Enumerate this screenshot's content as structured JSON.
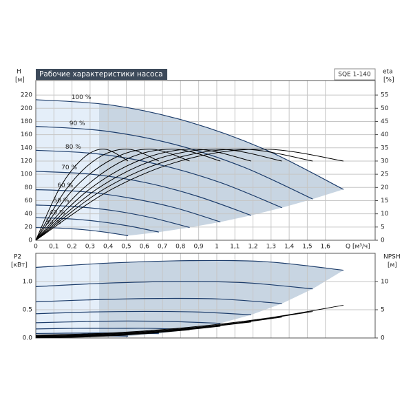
{
  "chart_data": [
    {
      "type": "pump-head",
      "title": "Рабочие характеристики насоса",
      "model": "SQE 1-140",
      "y_label": "H",
      "y_unit": "[м]",
      "y2_label": "eta",
      "y2_unit": "[%]",
      "x_label": "Q [м³/ч]",
      "xlim": [
        0,
        1.875
      ],
      "xticks": [
        0,
        {
          "value": 0.1,
          "label": "0,1"
        },
        {
          "value": 0.2,
          "label": "0,2"
        },
        {
          "value": 0.3,
          "label": "0,3"
        },
        {
          "value": 0.4,
          "label": "0,4"
        },
        {
          "value": 0.5,
          "label": "0,5"
        },
        {
          "value": 0.6,
          "label": "0,6"
        },
        {
          "value": 0.7,
          "label": "0,7"
        },
        {
          "value": 0.8,
          "label": "0,8"
        },
        {
          "value": 0.9,
          "label": "0,9"
        },
        1,
        {
          "value": 1.1,
          "label": "1,1"
        },
        {
          "value": 1.2,
          "label": "1,2"
        },
        {
          "value": 1.3,
          "label": "1,3"
        },
        {
          "value": 1.4,
          "label": "1,4"
        },
        {
          "value": 1.5,
          "label": "1,5"
        },
        {
          "value": 1.6,
          "label": "1,6"
        }
      ],
      "ylim": [
        0,
        242
      ],
      "yticks": [
        0,
        20,
        40,
        60,
        80,
        100,
        120,
        140,
        160,
        180,
        200,
        220
      ],
      "y2lim": [
        0,
        60.5
      ],
      "y2ticks": [
        0,
        5,
        10,
        15,
        20,
        25,
        30,
        35,
        40,
        45,
        50,
        55
      ],
      "grid": true,
      "shade_split_q": 0.35,
      "series": [
        {
          "name": "100 %",
          "color": "#1d3d6b",
          "x": [
            0,
            0.425,
            0.85,
            1.275,
            1.7
          ],
          "values": [
            213,
            204.5,
            179,
            136.5,
            77
          ]
        },
        {
          "name": "90 %",
          "color": "#1d3d6b",
          "x": [
            0,
            0.38,
            0.77,
            1.15,
            1.53
          ],
          "values": [
            172.5,
            165.6,
            145.0,
            110.6,
            62.4
          ]
        },
        {
          "name": "80 %",
          "color": "#1d3d6b",
          "x": [
            0,
            0.34,
            0.68,
            1.02,
            1.36
          ],
          "values": [
            136.3,
            130.9,
            114.6,
            87.4,
            49.3
          ]
        },
        {
          "name": "70 %",
          "color": "#1d3d6b",
          "x": [
            0,
            0.3,
            0.6,
            0.89,
            1.19
          ],
          "values": [
            104.4,
            100.2,
            87.7,
            66.9,
            37.7
          ]
        },
        {
          "name": "60 %",
          "color": "#1d3d6b",
          "x": [
            0,
            0.26,
            0.51,
            0.77,
            1.02
          ],
          "values": [
            76.7,
            73.6,
            64.4,
            49.1,
            27.7
          ]
        },
        {
          "name": "50 %",
          "color": "#1d3d6b",
          "x": [
            0,
            0.21,
            0.43,
            0.64,
            0.85
          ],
          "values": [
            53.3,
            51.1,
            44.8,
            34.1,
            19.3
          ]
        },
        {
          "name": "40 %",
          "color": "#1d3d6b",
          "x": [
            0,
            0.17,
            0.34,
            0.51,
            0.68
          ],
          "values": [
            34.1,
            32.7,
            28.6,
            21.8,
            12.3
          ]
        },
        {
          "name": "30 %",
          "color": "#1d3d6b",
          "x": [
            0,
            0.13,
            0.26,
            0.38,
            0.51
          ],
          "values": [
            19.2,
            18.4,
            16.1,
            12.3,
            6.9
          ]
        },
        {
          "axis": "y2",
          "color": "#000000",
          "x": [
            0,
            0.425,
            0.85,
            1.275,
            1.7
          ],
          "values": [
            0,
            19.5,
            31,
            34.5,
            30
          ]
        },
        {
          "axis": "y2",
          "color": "#000000",
          "x": [
            0,
            0.38,
            0.77,
            1.15,
            1.53
          ],
          "values": [
            0,
            19.5,
            31,
            34.5,
            30
          ]
        },
        {
          "axis": "y2",
          "color": "#000000",
          "x": [
            0,
            0.34,
            0.68,
            1.02,
            1.36
          ],
          "values": [
            0,
            19.5,
            31,
            34.5,
            30
          ]
        },
        {
          "axis": "y2",
          "color": "#000000",
          "x": [
            0,
            0.3,
            0.6,
            0.89,
            1.19
          ],
          "values": [
            0,
            19.5,
            31,
            34.5,
            30
          ]
        },
        {
          "axis": "y2",
          "color": "#000000",
          "x": [
            0,
            0.26,
            0.51,
            0.77,
            1.02
          ],
          "values": [
            0,
            19.5,
            31,
            34.5,
            30
          ]
        },
        {
          "axis": "y2",
          "color": "#000000",
          "x": [
            0,
            0.21,
            0.43,
            0.64,
            0.85
          ],
          "values": [
            0,
            19.5,
            31,
            34.5,
            30
          ]
        },
        {
          "axis": "y2",
          "color": "#000000",
          "x": [
            0,
            0.17,
            0.34,
            0.51,
            0.68
          ],
          "values": [
            0,
            19.5,
            31,
            34.5,
            30
          ]
        },
        {
          "axis": "y2",
          "color": "#000000",
          "x": [
            0,
            0.13,
            0.26,
            0.38,
            0.51
          ],
          "values": [
            0,
            19.5,
            31,
            34.5,
            30
          ]
        }
      ]
    },
    {
      "type": "pump-power",
      "y_label": "P2",
      "y_unit": "[кВт]",
      "y2_label": "NPSH",
      "y2_unit": "[м]",
      "xlim": [
        0,
        1.875
      ],
      "xticks": [
        0,
        0.1,
        0.2,
        0.3,
        0.4,
        0.5,
        0.6,
        0.7,
        0.8,
        0.9,
        1,
        1.1,
        1.2,
        1.3,
        1.4,
        1.5,
        1.6
      ],
      "ylim": [
        0,
        1.5
      ],
      "yticks": [
        {
          "value": 0,
          "label": "0.0"
        },
        0.5,
        {
          "value": 1,
          "label": "1.0"
        }
      ],
      "y2lim": [
        0,
        15
      ],
      "y2ticks": [
        0,
        5,
        10
      ],
      "grid": true,
      "shade_split_q": 0.35,
      "series": [
        {
          "color": "#1d3d6b",
          "x": [
            0,
            0.425,
            0.85,
            1.275,
            1.7
          ],
          "values": [
            1.25,
            1.33,
            1.37,
            1.35,
            1.2
          ]
        },
        {
          "color": "#1d3d6b",
          "x": [
            0,
            0.38,
            0.77,
            1.15,
            1.53
          ],
          "values": [
            0.91,
            0.97,
            1.0,
            0.98,
            0.87
          ]
        },
        {
          "color": "#1d3d6b",
          "x": [
            0,
            0.34,
            0.68,
            1.02,
            1.36
          ],
          "values": [
            0.64,
            0.68,
            0.7,
            0.69,
            0.61
          ]
        },
        {
          "color": "#1d3d6b",
          "x": [
            0,
            0.3,
            0.6,
            0.89,
            1.19
          ],
          "values": [
            0.43,
            0.46,
            0.47,
            0.46,
            0.41
          ]
        },
        {
          "color": "#1d3d6b",
          "x": [
            0,
            0.26,
            0.51,
            0.77,
            1.02
          ],
          "values": [
            0.27,
            0.29,
            0.3,
            0.29,
            0.26
          ]
        },
        {
          "color": "#1d3d6b",
          "x": [
            0,
            0.21,
            0.43,
            0.64,
            0.85
          ],
          "values": [
            0.16,
            0.17,
            0.17,
            0.17,
            0.15
          ]
        },
        {
          "color": "#1d3d6b",
          "x": [
            0,
            0.17,
            0.34,
            0.51,
            0.68
          ],
          "values": [
            0.08,
            0.085,
            0.088,
            0.086,
            0.077
          ]
        },
        {
          "color": "#1d3d6b",
          "x": [
            0,
            0.13,
            0.26,
            0.38,
            0.51
          ],
          "values": [
            0.034,
            0.036,
            0.037,
            0.036,
            0.032
          ]
        },
        {
          "axis": "y2",
          "color": "#000000",
          "x": [
            0,
            0.425,
            0.85,
            1.275,
            1.7
          ],
          "values": [
            0.5,
            0.9,
            1.9,
            3.5,
            5.8
          ]
        },
        {
          "axis": "y2",
          "color": "#000000",
          "x": [
            0,
            0.38,
            0.77,
            1.15,
            1.53
          ],
          "values": [
            0.41,
            0.73,
            1.54,
            2.84,
            4.7
          ]
        },
        {
          "axis": "y2",
          "color": "#000000",
          "x": [
            0,
            0.34,
            0.68,
            1.02,
            1.36
          ],
          "values": [
            0.32,
            0.58,
            1.22,
            2.24,
            3.71
          ]
        },
        {
          "axis": "y2",
          "color": "#000000",
          "x": [
            0,
            0.3,
            0.6,
            0.89,
            1.19
          ],
          "values": [
            0.25,
            0.44,
            0.93,
            1.72,
            2.84
          ]
        },
        {
          "axis": "y2",
          "color": "#000000",
          "x": [
            0,
            0.26,
            0.51,
            0.77,
            1.02
          ],
          "values": [
            0.18,
            0.32,
            0.68,
            1.26,
            2.09
          ]
        },
        {
          "axis": "y2",
          "color": "#000000",
          "x": [
            0,
            0.21,
            0.43,
            0.64,
            0.85
          ],
          "values": [
            0.13,
            0.23,
            0.48,
            0.88,
            1.45
          ]
        },
        {
          "axis": "y2",
          "color": "#000000",
          "x": [
            0,
            0.17,
            0.34,
            0.51,
            0.68
          ],
          "values": [
            0.08,
            0.14,
            0.3,
            0.56,
            0.93
          ]
        },
        {
          "axis": "y2",
          "color": "#000000",
          "x": [
            0,
            0.13,
            0.26,
            0.38,
            0.51
          ],
          "values": [
            0.05,
            0.08,
            0.17,
            0.32,
            0.52
          ]
        }
      ]
    }
  ]
}
